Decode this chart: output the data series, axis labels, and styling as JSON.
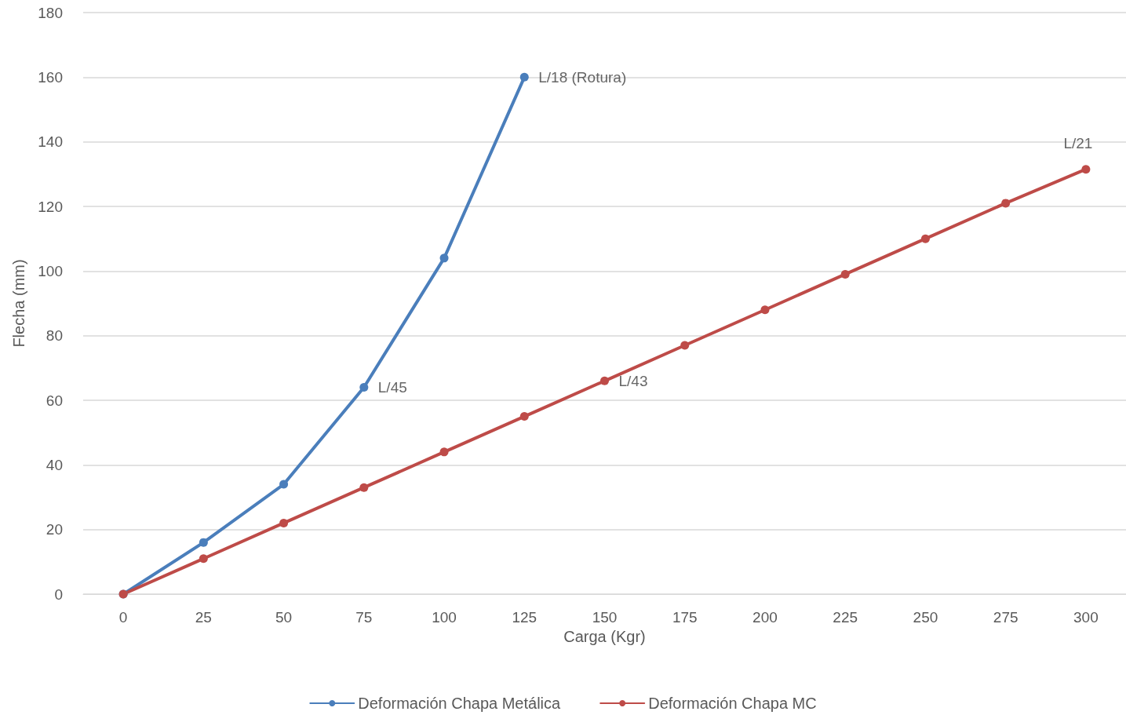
{
  "chart_data": {
    "type": "line",
    "xlabel": "Carga (Kgr)",
    "ylabel": "Flecha (mm)",
    "categories": [
      "0",
      "25",
      "50",
      "75",
      "100",
      "125",
      "150",
      "175",
      "200",
      "225",
      "250",
      "275",
      "300"
    ],
    "series": [
      {
        "name": "Deformación Chapa Metálica",
        "color": "#4a7ebb",
        "values": [
          0,
          16,
          34,
          64,
          104,
          160,
          null,
          null,
          null,
          null,
          null,
          null,
          null
        ]
      },
      {
        "name": "Deformación Chapa MC",
        "color": "#be4b48",
        "values": [
          0,
          11,
          22,
          33,
          44,
          55,
          66,
          77,
          88,
          99,
          110,
          121,
          131.5
        ]
      }
    ],
    "annotations": [
      {
        "text": "L/18 (Rotura)",
        "x": "125",
        "y": 160
      },
      {
        "text": "L/45",
        "x": "75",
        "y": 64
      },
      {
        "text": "L/43",
        "x": "150",
        "y": 66
      },
      {
        "text": "L/21",
        "x": "300",
        "y": 131.5
      }
    ],
    "ylim": [
      0,
      180
    ],
    "yticks": [
      0,
      20,
      40,
      60,
      80,
      100,
      120,
      140,
      160,
      180
    ],
    "grid": "y",
    "legend": "bottom",
    "marker": "circle",
    "line_style": "solid"
  }
}
